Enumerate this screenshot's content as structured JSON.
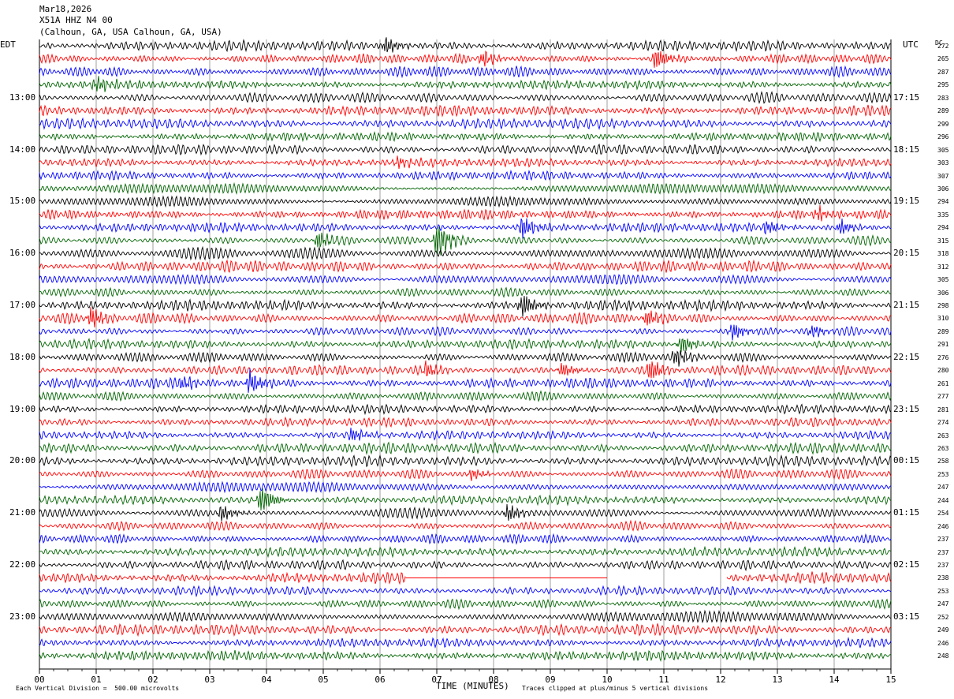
{
  "header": {
    "date": "Mar18,2026",
    "station": "X51A HHZ N4 00",
    "location": "(Calhoun, GA, USA Calhoun, GA, USA)"
  },
  "axis_labels": {
    "left_tz": "EDT",
    "right_tz": "UTC",
    "dc": "DC",
    "xlabel": "TIME (MINUTES)",
    "scale_note": "Each Vertical Division =  500.00 microvolts",
    "clip_note": "Traces clipped at plus/minus 5 vertical divisions"
  },
  "chart_data": {
    "type": "line",
    "title": "Mar18,2026 X51A HHZ N4 00 (Calhoun, GA, USA Calhoun, GA, USA)",
    "xlabel": "TIME (MINUTES)",
    "xlim": [
      0,
      15
    ],
    "x_ticks": [
      "00",
      "01",
      "02",
      "03",
      "04",
      "05",
      "06",
      "07",
      "08",
      "09",
      "10",
      "11",
      "12",
      "13",
      "14",
      "15"
    ],
    "left_hour_labels": [
      "13:00",
      "14:00",
      "15:00",
      "16:00",
      "17:00",
      "18:00",
      "19:00",
      "20:00",
      "21:00",
      "22:00",
      "23:00"
    ],
    "right_hour_labels": [
      "17:15",
      "18:15",
      "19:15",
      "20:15",
      "21:15",
      "22:15",
      "23:15",
      "00:15",
      "01:15",
      "02:15",
      "03:15"
    ],
    "trace_colors": [
      "#000000",
      "#ff0000",
      "#0000ff",
      "#006400"
    ],
    "dc_offsets": [
      272,
      265,
      287,
      295,
      283,
      289,
      299,
      296,
      305,
      303,
      307,
      306,
      294,
      335,
      294,
      315,
      318,
      312,
      305,
      306,
      298,
      310,
      289,
      291,
      276,
      280,
      261,
      277,
      281,
      274,
      263,
      263,
      258,
      253,
      247,
      244,
      254,
      246,
      237,
      237,
      237,
      238,
      253,
      247,
      252,
      249,
      246,
      248
    ],
    "grid": true,
    "events": [
      {
        "trace": 0,
        "minute": 6.1,
        "amp": 1.6
      },
      {
        "trace": 1,
        "minute": 7.8,
        "amp": 1.4
      },
      {
        "trace": 1,
        "minute": 10.85,
        "amp": 2.0
      },
      {
        "trace": 3,
        "minute": 1.0,
        "amp": 1.3
      },
      {
        "trace": 9,
        "minute": 6.3,
        "amp": 0.9
      },
      {
        "trace": 13,
        "minute": 13.7,
        "amp": 1.1
      },
      {
        "trace": 14,
        "minute": 8.5,
        "amp": 2.0
      },
      {
        "trace": 14,
        "minute": 12.8,
        "amp": 1.2
      },
      {
        "trace": 14,
        "minute": 14.1,
        "amp": 1.3
      },
      {
        "trace": 15,
        "minute": 4.9,
        "amp": 1.5
      },
      {
        "trace": 15,
        "minute": 7.0,
        "amp": 3.2
      },
      {
        "trace": 20,
        "minute": 8.5,
        "amp": 2.2
      },
      {
        "trace": 21,
        "minute": 0.9,
        "amp": 2.0
      },
      {
        "trace": 21,
        "minute": 10.7,
        "amp": 1.6
      },
      {
        "trace": 22,
        "minute": 12.2,
        "amp": 1.6
      },
      {
        "trace": 22,
        "minute": 13.6,
        "amp": 1.2
      },
      {
        "trace": 23,
        "minute": 11.3,
        "amp": 1.6
      },
      {
        "trace": 24,
        "minute": 11.2,
        "amp": 1.6
      },
      {
        "trace": 25,
        "minute": 6.8,
        "amp": 1.4
      },
      {
        "trace": 25,
        "minute": 9.2,
        "amp": 1.4
      },
      {
        "trace": 25,
        "minute": 10.75,
        "amp": 2.0
      },
      {
        "trace": 26,
        "minute": 3.7,
        "amp": 2.2
      },
      {
        "trace": 26,
        "minute": 2.5,
        "amp": 1.2
      },
      {
        "trace": 30,
        "minute": 5.5,
        "amp": 1.3
      },
      {
        "trace": 33,
        "minute": 7.6,
        "amp": 1.0
      },
      {
        "trace": 35,
        "minute": 3.9,
        "amp": 2.6
      },
      {
        "trace": 36,
        "minute": 3.2,
        "amp": 1.5
      },
      {
        "trace": 36,
        "minute": 8.25,
        "amp": 1.6
      }
    ],
    "gap": {
      "trace": 41,
      "start_minute": 6.45,
      "end_minute": 12.1
    }
  }
}
